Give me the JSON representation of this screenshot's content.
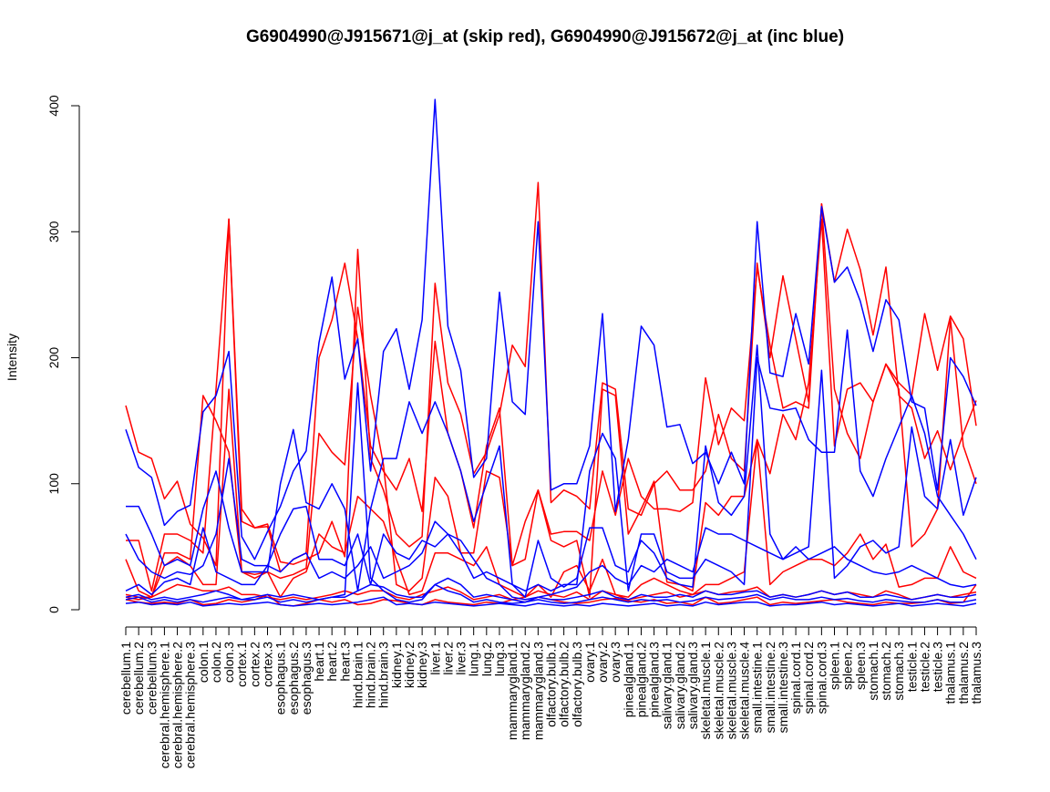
{
  "chart_data": {
    "type": "line",
    "title": "G6904990@J915671@j_at (skip red), G6904990@J915672@j_at (inc blue)",
    "ylabel": "Intensity",
    "xlabel": "",
    "ylim": [
      0,
      400
    ],
    "yticks": [
      0,
      100,
      200,
      300,
      400
    ],
    "grid": false,
    "colors": {
      "skip": "#ff0000",
      "inc": "#0000ff"
    },
    "categories": [
      "cerebellum.1",
      "cerebellum.2",
      "cerebellum.3",
      "cerebral.hemisphere.1",
      "cerebral.hemisphere.2",
      "cerebral.hemisphere.3",
      "colon.1",
      "colon.2",
      "colon.3",
      "cortex.1",
      "cortex.2",
      "cortex.3",
      "esophagus.1",
      "esophagus.2",
      "esophagus.3",
      "heart.1",
      "heart.2",
      "heart.3",
      "hind.brain.1",
      "hind.brain.2",
      "hind.brain.3",
      "kidney.1",
      "kidney.2",
      "kidney.3",
      "liver.1",
      "liver.2",
      "liver.3",
      "lung.1",
      "lung.2",
      "lung.3",
      "mammarygland.1",
      "mammarygland.2",
      "mammarygland.3",
      "olfactory.bulb.1",
      "olfactory.bulb.2",
      "olfactory.bulb.3",
      "ovary.1",
      "ovary.2",
      "ovary.3",
      "pinealgland.1",
      "pinealgland.2",
      "pinealgland.3",
      "salivary.gland.1",
      "salivary.gland.2",
      "salivary.gland.3",
      "skeletal.muscle.1",
      "skeletal.muscle.2",
      "skeletal.muscle.3",
      "skeletal.muscle.4",
      "small.intestine.1",
      "small.intestine.2",
      "small.intestine.3",
      "spinal.cord.1",
      "spinal.cord.2",
      "spinal.cord.3",
      "spleen.1",
      "spleen.2",
      "spleen.3",
      "stomach.1",
      "stomach.2",
      "stomach.3",
      "testicle.1",
      "testicle.2",
      "testicle.3",
      "thalamus.1",
      "thalamus.2",
      "thalamus.3"
    ],
    "series": [
      {
        "group": "skip",
        "values": [
          162,
          125,
          120,
          88,
          102,
          68,
          57,
          35,
          310,
          80,
          65,
          68,
          38,
          36,
          40,
          45,
          70,
          42,
          286,
          120,
          95,
          60,
          50,
          58,
          259,
          180,
          155,
          108,
          125,
          155,
          210,
          193,
          339,
          85,
          95,
          90,
          80,
          180,
          175,
          80,
          75,
          100,
          110,
          95,
          95,
          110,
          155,
          120,
          110,
          275,
          200,
          265,
          215,
          165,
          322,
          175,
          140,
          120,
          165,
          195,
          180,
          170,
          235,
          190,
          233,
          215,
          146
        ]
      },
      {
        "group": "skip",
        "values": [
          55,
          55,
          15,
          60,
          60,
          55,
          45,
          175,
          310,
          70,
          65,
          66,
          30,
          40,
          45,
          200,
          230,
          275,
          215,
          130,
          110,
          95,
          120,
          78,
          213,
          140,
          110,
          65,
          130,
          160,
          35,
          70,
          95,
          60,
          62,
          62,
          55,
          110,
          75,
          120,
          90,
          80,
          80,
          78,
          85,
          184,
          131,
          160,
          150,
          272,
          210,
          160,
          165,
          160,
          322,
          260,
          302,
          270,
          218,
          272,
          170,
          160,
          120,
          142,
          111,
          140,
          166
        ]
      },
      {
        "group": "skip",
        "values": [
          40,
          15,
          10,
          35,
          42,
          35,
          20,
          20,
          175,
          30,
          28,
          30,
          25,
          28,
          33,
          140,
          125,
          115,
          240,
          170,
          115,
          20,
          15,
          25,
          105,
          90,
          45,
          45,
          110,
          105,
          35,
          40,
          95,
          55,
          50,
          55,
          10,
          175,
          170,
          60,
          80,
          102,
          22,
          20,
          15,
          85,
          75,
          90,
          90,
          135,
          108,
          155,
          135,
          180,
          310,
          130,
          175,
          180,
          165,
          195,
          175,
          50,
          60,
          80,
          231,
          130,
          100
        ]
      },
      {
        "group": "skip",
        "values": [
          12,
          10,
          10,
          45,
          45,
          40,
          170,
          150,
          125,
          30,
          25,
          30,
          10,
          25,
          30,
          60,
          50,
          45,
          90,
          80,
          70,
          40,
          12,
          15,
          45,
          45,
          40,
          35,
          50,
          20,
          15,
          10,
          20,
          10,
          30,
          35,
          15,
          40,
          12,
          10,
          20,
          25,
          20,
          15,
          12,
          20,
          20,
          25,
          30,
          135,
          20,
          30,
          35,
          40,
          40,
          35,
          45,
          60,
          40,
          52,
          18,
          20,
          25,
          25,
          50,
          30,
          25
        ]
      },
      {
        "group": "skip",
        "values": [
          10,
          8,
          10,
          15,
          20,
          18,
          15,
          15,
          18,
          12,
          12,
          10,
          8,
          10,
          8,
          10,
          12,
          15,
          12,
          15,
          15,
          10,
          8,
          12,
          15,
          18,
          14,
          8,
          10,
          12,
          8,
          10,
          15,
          12,
          10,
          14,
          8,
          15,
          12,
          8,
          10,
          12,
          14,
          10,
          12,
          15,
          12,
          14,
          15,
          18,
          10,
          12,
          10,
          12,
          15,
          12,
          14,
          12,
          10,
          15,
          12,
          8,
          10,
          12,
          10,
          12,
          14
        ]
      },
      {
        "group": "skip",
        "values": [
          8,
          6,
          5,
          6,
          5,
          8,
          4,
          5,
          8,
          6,
          8,
          12,
          4,
          3,
          5,
          8,
          6,
          8,
          4,
          5,
          8,
          7,
          5,
          4,
          8,
          6,
          5,
          4,
          6,
          5,
          8,
          6,
          10,
          8,
          6,
          5,
          6,
          8,
          9,
          7,
          6,
          8,
          5,
          6,
          4,
          10,
          5,
          6,
          8,
          10,
          4,
          6,
          5,
          6,
          7,
          8,
          6,
          5,
          4,
          6,
          5,
          5,
          6,
          8,
          5,
          6,
          20
        ]
      },
      {
        "group": "inc",
        "values": [
          143,
          113,
          105,
          67,
          78,
          83,
          157,
          170,
          205,
          58,
          40,
          62,
          82,
          110,
          126,
          212,
          264,
          183,
          215,
          110,
          205,
          223,
          175,
          230,
          405,
          225,
          190,
          105,
          120,
          252,
          165,
          155,
          308,
          95,
          100,
          100,
          130,
          235,
          78,
          135,
          225,
          210,
          145,
          147,
          116,
          125,
          100,
          125,
          100,
          308,
          188,
          185,
          235,
          195,
          320,
          260,
          272,
          245,
          205,
          246,
          230,
          165,
          160,
          95,
          200,
          185,
          162
        ]
      },
      {
        "group": "inc",
        "values": [
          82,
          82,
          60,
          35,
          40,
          35,
          80,
          110,
          65,
          30,
          30,
          30,
          100,
          143,
          85,
          80,
          100,
          80,
          15,
          80,
          120,
          120,
          165,
          140,
          165,
          140,
          110,
          70,
          100,
          130,
          20,
          15,
          20,
          15,
          20,
          20,
          110,
          140,
          120,
          15,
          60,
          60,
          30,
          25,
          25,
          40,
          35,
          30,
          20,
          200,
          160,
          158,
          160,
          135,
          125,
          125,
          222,
          110,
          90,
          120,
          145,
          170,
          140,
          90,
          75,
          60,
          40
        ]
      },
      {
        "group": "inc",
        "values": [
          60,
          40,
          30,
          25,
          30,
          28,
          35,
          60,
          120,
          40,
          35,
          35,
          60,
          80,
          82,
          40,
          40,
          35,
          60,
          20,
          60,
          45,
          40,
          55,
          50,
          60,
          45,
          25,
          30,
          25,
          20,
          10,
          55,
          25,
          18,
          25,
          65,
          65,
          35,
          30,
          55,
          45,
          25,
          20,
          18,
          130,
          85,
          75,
          90,
          210,
          60,
          40,
          45,
          50,
          190,
          25,
          35,
          50,
          55,
          45,
          50,
          145,
          90,
          80,
          135,
          75,
          105
        ]
      },
      {
        "group": "inc",
        "values": [
          15,
          20,
          12,
          22,
          25,
          20,
          65,
          30,
          25,
          20,
          20,
          35,
          30,
          40,
          45,
          25,
          30,
          25,
          35,
          50,
          25,
          30,
          35,
          45,
          70,
          60,
          55,
          40,
          25,
          20,
          10,
          8,
          10,
          12,
          15,
          18,
          30,
          35,
          25,
          20,
          35,
          30,
          40,
          35,
          30,
          65,
          60,
          60,
          55,
          50,
          45,
          40,
          50,
          40,
          45,
          50,
          40,
          35,
          30,
          28,
          30,
          35,
          30,
          25,
          20,
          18,
          20
        ]
      },
      {
        "group": "inc",
        "values": [
          10,
          12,
          8,
          10,
          8,
          10,
          12,
          15,
          12,
          8,
          10,
          12,
          10,
          12,
          10,
          8,
          10,
          10,
          15,
          20,
          18,
          12,
          10,
          10,
          20,
          25,
          20,
          10,
          12,
          10,
          8,
          6,
          10,
          8,
          8,
          10,
          12,
          15,
          10,
          8,
          12,
          10,
          10,
          12,
          10,
          15,
          12,
          12,
          14,
          15,
          10,
          12,
          10,
          12,
          15,
          12,
          14,
          10,
          10,
          12,
          10,
          8,
          10,
          12,
          10,
          10,
          12
        ]
      },
      {
        "group": "inc",
        "values": [
          8,
          10,
          6,
          8,
          6,
          8,
          6,
          8,
          10,
          8,
          8,
          10,
          6,
          8,
          6,
          8,
          10,
          12,
          180,
          25,
          15,
          8,
          6,
          8,
          20,
          15,
          12,
          6,
          8,
          6,
          5,
          6,
          8,
          6,
          5,
          6,
          8,
          10,
          8,
          6,
          8,
          7,
          8,
          6,
          7,
          10,
          8,
          9,
          10,
          12,
          8,
          10,
          8,
          8,
          10,
          8,
          9,
          7,
          6,
          8,
          7,
          6,
          6,
          8,
          6,
          6,
          8
        ]
      },
      {
        "group": "inc",
        "values": [
          5,
          6,
          4,
          5,
          4,
          6,
          3,
          4,
          5,
          4,
          5,
          6,
          4,
          3,
          4,
          5,
          4,
          5,
          6,
          8,
          10,
          4,
          5,
          4,
          6,
          5,
          4,
          3,
          4,
          5,
          4,
          3,
          5,
          4,
          3,
          4,
          3,
          5,
          4,
          3,
          4,
          5,
          3,
          4,
          3,
          6,
          4,
          5,
          6,
          6,
          3,
          4,
          4,
          5,
          6,
          4,
          5,
          4,
          3,
          4,
          5,
          3,
          4,
          5,
          4,
          3,
          5
        ]
      }
    ]
  }
}
